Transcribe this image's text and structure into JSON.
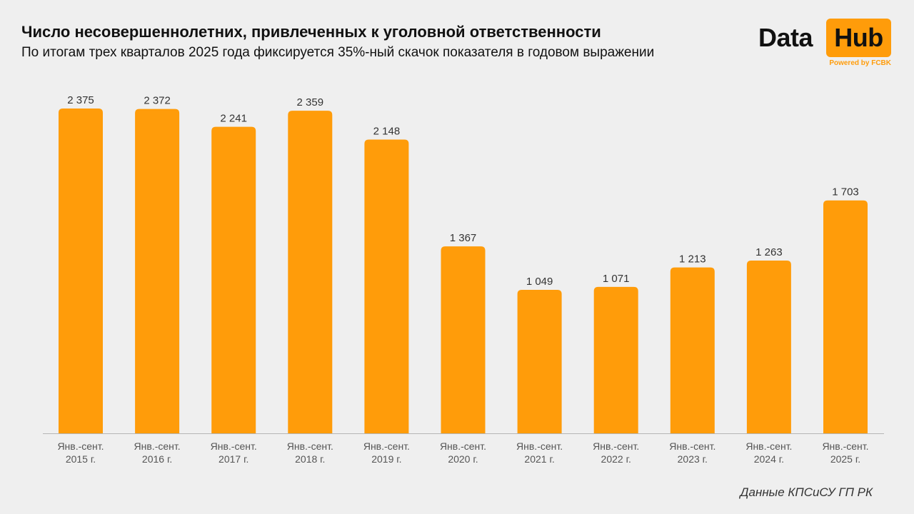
{
  "header": {
    "title": "Число несовершеннолетних, привлеченных к уголовной ответственности",
    "subtitle": "По итогам трех кварталов 2025 года фиксируется 35%-ный скачок показателя в годовом выражении"
  },
  "logo": {
    "word1": "Data",
    "word2": "Hub",
    "powered": "Powered by FCBK",
    "accent_color": "#ff9c0a"
  },
  "source": "Данные КПСиСУ ГП РК",
  "chart_data": {
    "type": "bar",
    "categories": [
      [
        "Янв.-сент.",
        "2015 г."
      ],
      [
        "Янв.-сент.",
        "2016 г."
      ],
      [
        "Янв.-сент.",
        "2017 г."
      ],
      [
        "Янв.-сент.",
        "2018 г."
      ],
      [
        "Янв.-сент.",
        "2019 г."
      ],
      [
        "Янв.-сент.",
        "2020 г."
      ],
      [
        "Янв.-сент.",
        "2021 г."
      ],
      [
        "Янв.-сент.",
        "2022 г."
      ],
      [
        "Янв.-сент.",
        "2023 г."
      ],
      [
        "Янв.-сент.",
        "2024 г."
      ],
      [
        "Янв.-сент.",
        "2025 г."
      ]
    ],
    "values": [
      2375,
      2372,
      2241,
      2359,
      2148,
      1367,
      1049,
      1071,
      1213,
      1263,
      1703
    ],
    "value_labels": [
      "2 375",
      "2 372",
      "2 241",
      "2 359",
      "2 148",
      "1 367",
      "1 049",
      "1 071",
      "1 213",
      "1 263",
      "1 703"
    ],
    "ylim": [
      0,
      2375
    ],
    "bar_color": "#ff9c0a",
    "grid": false,
    "legend": "none"
  }
}
